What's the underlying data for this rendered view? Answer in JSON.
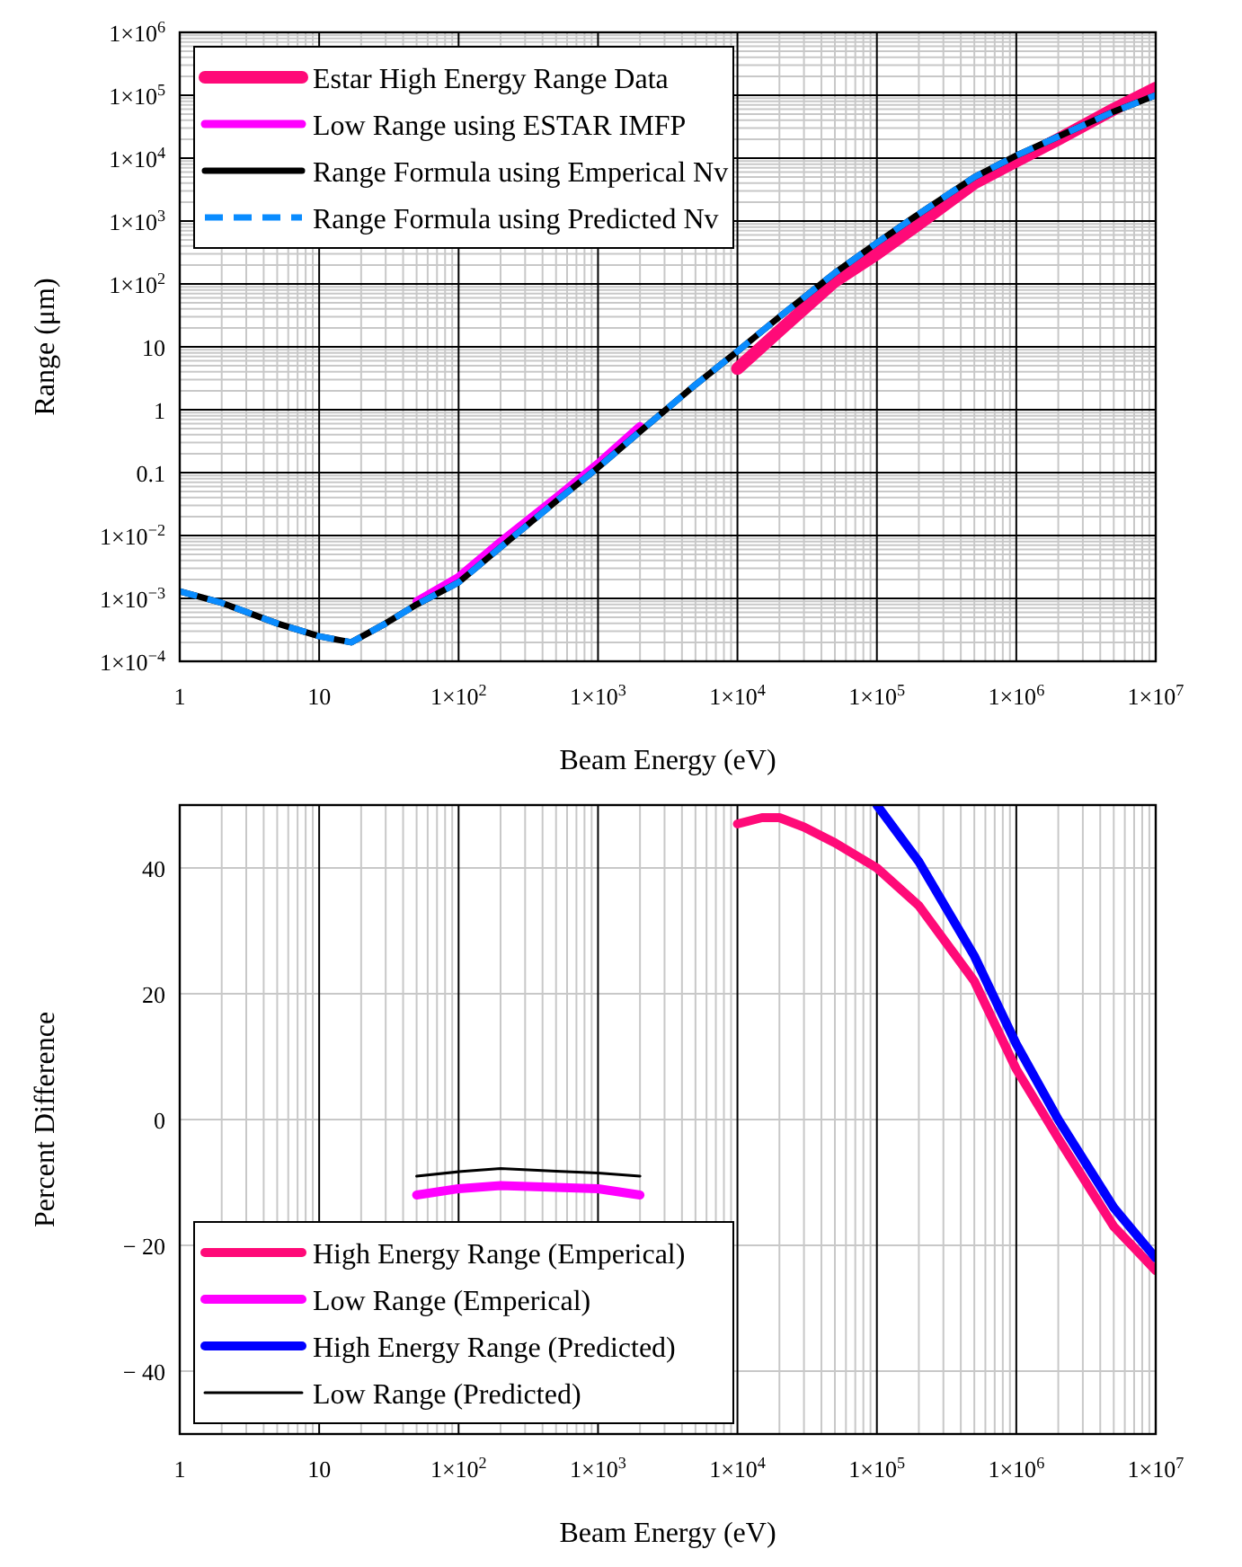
{
  "chart_data": [
    {
      "type": "line",
      "xlabel": "Beam Energy (eV)",
      "ylabel": "Range (μm)",
      "log": "xy",
      "grid": true,
      "legend": "top left",
      "xlim": [
        1,
        10000000
      ],
      "ylim": [
        0.0001,
        1000000
      ],
      "xticks": [
        {
          "value": 1,
          "label": "1"
        },
        {
          "value": 10,
          "label": "10"
        },
        {
          "value": 100,
          "label": "1×10$^{2}$"
        },
        {
          "value": 1000,
          "label": "1×10$^{3}$"
        },
        {
          "value": 10000,
          "label": "1×10$^{4}$"
        },
        {
          "value": 100000,
          "label": "1×10$^{5}$"
        },
        {
          "value": 1000000,
          "label": "1×10$^{6}$"
        },
        {
          "value": 10000000,
          "label": "1×10$^{7}$"
        }
      ],
      "yticks": [
        {
          "value": 0.0001,
          "label": "1×10$^{−4}$"
        },
        {
          "value": 0.001,
          "label": "1×10$^{−3}$"
        },
        {
          "value": 0.01,
          "label": "1×10$^{−2}$"
        },
        0.1,
        1,
        10,
        {
          "value": 100,
          "label": "1×10$^{2}$"
        },
        {
          "value": 1000,
          "label": "1×10$^{3}$"
        },
        {
          "value": 10000,
          "label": "1×10$^{4}$"
        },
        {
          "value": 100000,
          "label": "1×10$^{5}$"
        },
        {
          "value": 1000000,
          "label": "1×10$^{6}$"
        }
      ],
      "series": [
        {
          "name": "Estar High Energy Range Data",
          "color": "#ff0a78",
          "x": [
            10000,
            20000,
            50000,
            100000,
            200000,
            500000,
            1000000,
            2000000,
            5000000,
            10000000
          ],
          "values": [
            4.5,
            18,
            110,
            300,
            900,
            4000,
            9000,
            20000,
            60000,
            130000
          ]
        },
        {
          "name": "Low Range using ESTAR IMFP",
          "color": "#ff00ff",
          "x": [
            50,
            100,
            200,
            500,
            1000,
            2000
          ],
          "values": [
            0.0009,
            0.0022,
            0.008,
            0.04,
            0.14,
            0.55
          ]
        },
        {
          "name": "Range Formula using Emperical Nv",
          "color": "#000000",
          "x": [
            1,
            2,
            5,
            10,
            17,
            30,
            50,
            100,
            200,
            500,
            1000,
            2000,
            5000,
            10000,
            20000,
            50000,
            100000,
            200000,
            500000,
            1000000,
            2000000,
            5000000,
            10000000
          ],
          "values": [
            0.0013,
            0.00085,
            0.0004,
            0.00025,
            0.0002,
            0.0004,
            0.0008,
            0.0018,
            0.0065,
            0.035,
            0.12,
            0.45,
            2.5,
            8.5,
            30,
            150,
            450,
            1300,
            5000,
            11000,
            22000,
            55000,
            100000
          ]
        },
        {
          "name": "Range Formula using Predicted Nv",
          "color": "#0a8cff",
          "line_style": "dashed",
          "x": [
            1,
            2,
            5,
            10,
            17,
            30,
            50,
            100,
            200,
            500,
            1000,
            2000,
            5000,
            10000,
            20000,
            50000,
            100000,
            200000,
            500000,
            1000000,
            2000000,
            5000000,
            10000000
          ],
          "values": [
            0.0013,
            0.00085,
            0.0004,
            0.00025,
            0.0002,
            0.0004,
            0.0008,
            0.0018,
            0.0065,
            0.035,
            0.12,
            0.45,
            2.5,
            8.5,
            30,
            150,
            450,
            1300,
            5000,
            11000,
            22000,
            55000,
            100000
          ]
        }
      ]
    },
    {
      "type": "line",
      "xlabel": "Beam Energy (eV)",
      "ylabel": "Percent Difference",
      "log": "x",
      "grid": true,
      "legend": "bottom left",
      "xlim": [
        1,
        10000000
      ],
      "ylim": [
        -50,
        50
      ],
      "xticks": [
        {
          "value": 1,
          "label": "1"
        },
        {
          "value": 10,
          "label": "10"
        },
        {
          "value": 100,
          "label": "1×10$^{2}$"
        },
        {
          "value": 1000,
          "label": "1×10$^{3}$"
        },
        {
          "value": 10000,
          "label": "1×10$^{4}$"
        },
        {
          "value": 100000,
          "label": "1×10$^{5}$"
        },
        {
          "value": 1000000,
          "label": "1×10$^{6}$"
        },
        {
          "value": 10000000,
          "label": "1×10$^{7}$"
        }
      ],
      "yticks": [
        {
          "value": -40,
          "label": "− 40"
        },
        {
          "value": -20,
          "label": "− 20"
        },
        0,
        20,
        40
      ],
      "series": [
        {
          "name": "High Energy Range (Emperical)",
          "color": "#ff0a78",
          "x": [
            10000,
            15000,
            20000,
            30000,
            50000,
            100000,
            200000,
            500000,
            1000000,
            2000000,
            5000000,
            10000000
          ],
          "values": [
            47,
            48,
            48,
            46.5,
            44,
            40,
            34,
            22,
            8,
            -3,
            -17,
            -24
          ]
        },
        {
          "name": "Low Range (Emperical)",
          "color": "#ff00ff",
          "x": [
            50,
            100,
            200,
            500,
            1000,
            2000
          ],
          "values": [
            -12,
            -11,
            -10.5,
            -10.8,
            -11,
            -12
          ]
        },
        {
          "name": "High Energy Range (Predicted)",
          "color": "#0000ff",
          "x": [
            100000,
            200000,
            500000,
            1000000,
            2000000,
            5000000,
            10000000
          ],
          "values": [
            50,
            41,
            26,
            12,
            0,
            -14,
            -22
          ]
        },
        {
          "name": "Low Range (Predicted)",
          "color": "#000000",
          "x": [
            50,
            100,
            200,
            500,
            1000,
            2000
          ],
          "values": [
            -9,
            -8.3,
            -7.8,
            -8.2,
            -8.5,
            -9
          ]
        }
      ]
    }
  ]
}
